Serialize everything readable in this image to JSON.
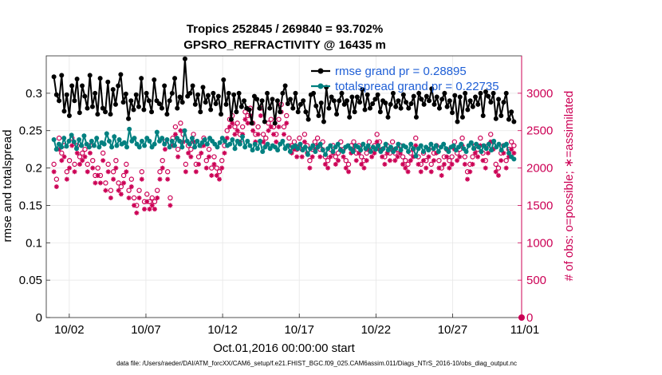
{
  "chart_data": {
    "type": "line",
    "title": "Tropics 252845 / 269840 = 93.702%",
    "subtitle": "GPSRO_REFRACTIVITY @ 16435 m",
    "xlabel": "Oct.01,2016 00:00:00 start",
    "ylabel_left": "rmse and totalspread",
    "ylabel_right": "# of obs: o=possible; ∗=assimilated",
    "footer": "data file: /Users/raeder/DAI/ATM_forcXX/CAM6_setup/f.e21.FHIST_BGC.f09_025.CAM6assim.011/Diags_NTrS_2016-10/obs_diag_output.nc",
    "xlim": [
      0.5,
      31.5
    ],
    "ylim_left": [
      0,
      0.35
    ],
    "ylim_right": [
      0,
      3500
    ],
    "x_ticks": [
      2,
      7,
      12,
      17,
      22,
      27,
      32
    ],
    "x_tick_labels": [
      "10/02",
      "10/07",
      "10/12",
      "10/17",
      "10/22",
      "10/27",
      "11/01"
    ],
    "y_ticks_left": [
      0,
      0.05,
      0.1,
      0.15,
      0.2,
      0.25,
      0.3
    ],
    "y_tick_labels_left": [
      "0",
      "0.05",
      "0.1",
      "0.15",
      "0.2",
      "0.25",
      "0.3"
    ],
    "y_ticks_right": [
      0,
      500,
      1000,
      1500,
      2000,
      2500,
      3000
    ],
    "y_tick_labels_right": [
      "0",
      "500",
      "1000",
      "1500",
      "2000",
      "2500",
      "3000"
    ],
    "colors": {
      "rmse": "#000000",
      "spread": "#008080",
      "obs": "#cc0055",
      "legend_text": "#1f5fd6",
      "grid": "#e6e6e6"
    },
    "series": [
      {
        "name": "rmse grand pr = 0.28895",
        "color": "#000000",
        "marker": "filled-circle",
        "values": [
          0.322,
          0.298,
          0.29,
          0.324,
          0.276,
          0.298,
          0.27,
          0.31,
          0.29,
          0.319,
          0.274,
          0.31,
          0.296,
          0.28,
          0.324,
          0.282,
          0.3,
          0.272,
          0.32,
          0.28,
          0.275,
          0.315,
          0.272,
          0.305,
          0.285,
          0.31,
          0.325,
          0.288,
          0.299,
          0.266,
          0.29,
          0.278,
          0.298,
          0.282,
          0.32,
          0.278,
          0.3,
          0.29,
          0.275,
          0.318,
          0.29,
          0.286,
          0.28,
          0.31,
          0.272,
          0.29,
          0.3,
          0.32,
          0.28,
          0.295,
          0.288,
          0.346,
          0.296,
          0.3,
          0.31,
          0.285,
          0.298,
          0.275,
          0.308,
          0.288,
          0.297,
          0.278,
          0.3,
          0.286,
          0.296,
          0.272,
          0.318,
          0.285,
          0.3,
          0.265,
          0.298,
          0.275,
          0.3,
          0.282,
          0.29,
          0.28,
          0.278,
          0.26,
          0.296,
          0.292,
          0.28,
          0.29,
          0.262,
          0.3,
          0.28,
          0.292,
          0.26,
          0.29,
          0.275,
          0.3,
          0.31,
          0.286,
          0.292,
          0.28,
          0.3,
          0.275,
          0.285,
          0.29,
          0.275,
          0.265,
          0.298,
          0.3,
          0.283,
          0.27,
          0.287,
          0.262,
          0.308,
          0.28,
          0.295,
          0.29,
          0.272,
          0.29,
          0.3,
          0.285,
          0.29,
          0.268,
          0.295,
          0.275,
          0.295,
          0.288,
          0.305,
          0.278,
          0.298,
          0.28,
          0.286,
          0.292,
          0.298,
          0.275,
          0.29,
          0.287,
          0.268,
          0.285,
          0.3,
          0.282,
          0.29,
          0.28,
          0.298,
          0.288,
          0.28,
          0.286,
          0.296,
          0.268,
          0.3,
          0.292,
          0.285,
          0.296,
          0.29,
          0.306,
          0.285,
          0.295,
          0.28,
          0.292,
          0.3,
          0.282,
          0.29,
          0.274,
          0.297,
          0.262,
          0.295,
          0.268,
          0.3,
          0.278,
          0.29,
          0.282,
          0.295,
          0.285,
          0.3,
          0.27,
          0.302,
          0.296,
          0.288,
          0.3,
          0.266,
          0.292,
          0.27,
          0.288,
          0.3,
          0.265,
          0.275,
          0.262
        ]
      },
      {
        "name": "totalspread grand pr = 0.22735",
        "color": "#008080",
        "marker": "filled-circle",
        "values": [
          0.238,
          0.225,
          0.232,
          0.228,
          0.24,
          0.229,
          0.236,
          0.244,
          0.235,
          0.226,
          0.238,
          0.23,
          0.243,
          0.232,
          0.228,
          0.236,
          0.23,
          0.24,
          0.228,
          0.234,
          0.232,
          0.246,
          0.236,
          0.228,
          0.242,
          0.23,
          0.238,
          0.232,
          0.234,
          0.228,
          0.252,
          0.236,
          0.24,
          0.232,
          0.228,
          0.236,
          0.23,
          0.24,
          0.236,
          0.228,
          0.232,
          0.248,
          0.236,
          0.24,
          0.232,
          0.238,
          0.228,
          0.236,
          0.23,
          0.24,
          0.236,
          0.228,
          0.25,
          0.236,
          0.232,
          0.24,
          0.228,
          0.236,
          0.23,
          0.234,
          0.238,
          0.232,
          0.24,
          0.236,
          0.232,
          0.228,
          0.234,
          0.24,
          0.236,
          0.23,
          0.232,
          0.238,
          0.226,
          0.236,
          0.232,
          0.242,
          0.228,
          0.236,
          0.23,
          0.224,
          0.232,
          0.226,
          0.236,
          0.222,
          0.228,
          0.232,
          0.226,
          0.23,
          0.228,
          0.224,
          0.232,
          0.236,
          0.226,
          0.23,
          0.222,
          0.228,
          0.23,
          0.226,
          0.232,
          0.224,
          0.228,
          0.218,
          0.226,
          0.23,
          0.222,
          0.228,
          0.232,
          0.224,
          0.218,
          0.226,
          0.23,
          0.222,
          0.228,
          0.232,
          0.224,
          0.222,
          0.228,
          0.23,
          0.226,
          0.222,
          0.23,
          0.228,
          0.224,
          0.232,
          0.226,
          0.23,
          0.222,
          0.228,
          0.225,
          0.23,
          0.222,
          0.226,
          0.232,
          0.224,
          0.228,
          0.222,
          0.226,
          0.232,
          0.224,
          0.23,
          0.228,
          0.222,
          0.232,
          0.226,
          0.216,
          0.226,
          0.23,
          0.222,
          0.228,
          0.224,
          0.232,
          0.226,
          0.23,
          0.222,
          0.228,
          0.232,
          0.226,
          0.222,
          0.228,
          0.23,
          0.224,
          0.228,
          0.232,
          0.226,
          0.222,
          0.23,
          0.234,
          0.226,
          0.232,
          0.228,
          0.222,
          0.23,
          0.226,
          0.232,
          0.224,
          0.236,
          0.228,
          0.232,
          0.224,
          0.23,
          0.232,
          0.22,
          0.215,
          0.212
        ]
      }
    ],
    "obs_possible": [
      2050,
      1850,
      2400,
      2200,
      2300,
      1950,
      2100,
      2400,
      2050,
      2300,
      2150,
      2200,
      2250,
      2050,
      2300,
      2100,
      1900,
      2000,
      1900,
      2200,
      1800,
      2050,
      1700,
      1950,
      2100,
      1800,
      1750,
      1900,
      2050,
      1700,
      1850,
      1600,
      1500,
      1700,
      1950,
      1550,
      1650,
      1550,
      1600,
      1550,
      1700,
      1950,
      2100,
      2350,
      1950,
      1600,
      2400,
      2550,
      2250,
      2600,
      2450,
      2050,
      2300,
      2250,
      2450,
      2050,
      2150,
      2300,
      2400,
      2100,
      2250,
      2000,
      2150,
      2000,
      1950,
      2100,
      2300,
      2500,
      2650,
      2700,
      2550,
      2600,
      2450,
      2550,
      2750,
      2700,
      2800,
      2600,
      2450,
      2550,
      2800,
      2450,
      2400,
      2600,
      2650,
      2550,
      2450,
      2650,
      2850,
      2550,
      2700,
      2400,
      2300,
      2350,
      2250,
      2400,
      2250,
      2450,
      2300,
      2100,
      2250,
      2350,
      2400,
      2250,
      2350,
      2150,
      2100,
      2250,
      2300,
      2150,
      2200,
      2350,
      2250,
      2100,
      2050,
      2300,
      2350,
      2200,
      2300,
      2150,
      2100,
      2200,
      2350,
      2250,
      2300,
      2450,
      2350,
      2250,
      2150,
      2300,
      2200,
      2350,
      2200,
      2250,
      2300,
      2150,
      2100,
      2050,
      2200,
      2250,
      2400,
      2150,
      2050,
      2200,
      2100,
      2250,
      2050,
      2200,
      2300,
      2100,
      2000,
      2150,
      2250,
      2100,
      2150,
      2350,
      2200,
      2250,
      2400,
      2150,
      1950,
      2050,
      2150,
      2300,
      2250,
      2400,
      2200,
      2100,
      2300,
      2450,
      2350,
      2050,
      2000,
      2200,
      2300,
      2100,
      2250,
      2350,
      2300
    ],
    "obs_assimilated": [
      1950,
      1750,
      2250,
      2100,
      2150,
      1850,
      2000,
      2300,
      1950,
      2200,
      2050,
      2100,
      2150,
      1950,
      2200,
      2000,
      1800,
      1900,
      1800,
      2100,
      1700,
      1950,
      1600,
      1850,
      2000,
      1700,
      1650,
      1800,
      1950,
      1600,
      1750,
      1500,
      1400,
      1600,
      1850,
      1450,
      1550,
      1450,
      1500,
      1450,
      1600,
      1850,
      2000,
      2250,
      1850,
      1500,
      2300,
      2450,
      2150,
      2500,
      2350,
      1950,
      2200,
      2150,
      2350,
      1950,
      2050,
      2200,
      2300,
      2000,
      2150,
      1900,
      2050,
      1900,
      1850,
      2000,
      2200,
      2400,
      2550,
      2600,
      2450,
      2500,
      2350,
      2450,
      2650,
      2600,
      2700,
      2500,
      2350,
      2450,
      2700,
      2350,
      2300,
      2500,
      2550,
      2450,
      2350,
      2550,
      2750,
      2450,
      2600,
      2300,
      2200,
      2250,
      2150,
      2300,
      2150,
      2350,
      2200,
      2000,
      2150,
      2250,
      2300,
      2150,
      2250,
      2050,
      2000,
      2150,
      2200,
      2050,
      2100,
      2250,
      2150,
      2000,
      1950,
      2200,
      2250,
      2100,
      2200,
      2050,
      2000,
      2100,
      2250,
      2150,
      2200,
      2350,
      2250,
      2150,
      2050,
      2200,
      2100,
      2250,
      2100,
      2150,
      2200,
      2050,
      2000,
      1950,
      2100,
      2150,
      2300,
      2050,
      1950,
      2100,
      2000,
      2150,
      1950,
      2100,
      2200,
      2000,
      1900,
      2050,
      2150,
      2000,
      2050,
      2250,
      2100,
      2150,
      2300,
      2050,
      1850,
      1950,
      2050,
      2200,
      2150,
      2300,
      2100,
      2000,
      2200,
      2350,
      2250,
      1950,
      1900,
      2100,
      2200,
      2000,
      2150,
      2250,
      2200
    ]
  }
}
